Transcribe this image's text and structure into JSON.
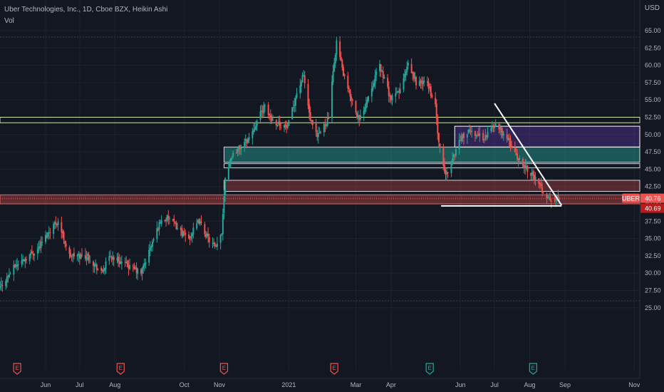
{
  "header": {
    "title": "Uber Technologies, Inc., 1D, Cboe BZX, Heikin Ashi",
    "indicator": "Vol",
    "currency": "USD"
  },
  "colors": {
    "background": "#131722",
    "up": "#26a69a",
    "down": "#ef5350",
    "grid": "#1e222d",
    "axis_text": "#b2b5be",
    "price_label": "#ef5350"
  },
  "chart_data": {
    "type": "candlestick",
    "style": "Heikin Ashi",
    "ylim": [
      23.5,
      66
    ],
    "grid": true,
    "y_ticks": [
      "65.00",
      "62.50",
      "60.00",
      "57.50",
      "55.00",
      "52.50",
      "50.00",
      "47.50",
      "45.00",
      "42.50",
      "40.00",
      "37.50",
      "35.00",
      "32.50",
      "30.00",
      "27.50",
      "25.00"
    ],
    "x_ticks": [
      {
        "label": "Jun",
        "date": "2020-06-01"
      },
      {
        "label": "Jul",
        "date": "2020-07-01"
      },
      {
        "label": "Aug",
        "date": "2020-08-01"
      },
      {
        "label": "Oct",
        "date": "2020-10-01"
      },
      {
        "label": "Nov",
        "date": "2020-11-01"
      },
      {
        "label": "2021",
        "date": "2021-01-01"
      },
      {
        "label": "Mar",
        "date": "2021-03-01"
      },
      {
        "label": "Apr",
        "date": "2021-04-01"
      },
      {
        "label": "Jun",
        "date": "2021-06-01"
      },
      {
        "label": "Jul",
        "date": "2021-07-01"
      },
      {
        "label": "Aug",
        "date": "2021-08-01"
      },
      {
        "label": "Sep",
        "date": "2021-09-01"
      },
      {
        "label": "Nov",
        "date": "2021-11-01"
      }
    ],
    "price_path": [
      [
        "2020-04-20",
        27.5
      ],
      [
        "2020-05-05",
        31.0
      ],
      [
        "2020-05-25",
        33.5
      ],
      [
        "2020-06-08",
        37.0
      ],
      [
        "2020-06-12",
        37.5
      ],
      [
        "2020-06-22",
        32.5
      ],
      [
        "2020-07-08",
        32.5
      ],
      [
        "2020-07-20",
        30.0
      ],
      [
        "2020-07-28",
        32.5
      ],
      [
        "2020-08-07",
        31.5
      ],
      [
        "2020-08-24",
        30.0
      ],
      [
        "2020-09-02",
        34.0
      ],
      [
        "2020-09-10",
        37.5
      ],
      [
        "2020-09-17",
        38.0
      ],
      [
        "2020-09-28",
        36.0
      ],
      [
        "2020-10-05",
        35.0
      ],
      [
        "2020-10-14",
        37.5
      ],
      [
        "2020-10-22",
        35.0
      ],
      [
        "2020-10-29",
        33.5
      ],
      [
        "2020-11-03",
        36.0
      ],
      [
        "2020-11-06",
        44.0
      ],
      [
        "2020-11-12",
        47.0
      ],
      [
        "2020-11-27",
        49.5
      ],
      [
        "2020-12-10",
        54.0
      ],
      [
        "2020-12-18",
        52.0
      ],
      [
        "2020-12-31",
        51.0
      ],
      [
        "2021-01-08",
        56.0
      ],
      [
        "2021-01-14",
        58.5
      ],
      [
        "2021-01-20",
        52.0
      ],
      [
        "2021-01-26",
        49.5
      ],
      [
        "2021-02-05",
        52.5
      ],
      [
        "2021-02-12",
        63.5
      ],
      [
        "2021-02-19",
        58.0
      ],
      [
        "2021-03-04",
        52.0
      ],
      [
        "2021-03-15",
        57.0
      ],
      [
        "2021-03-22",
        60.0
      ],
      [
        "2021-04-01",
        55.0
      ],
      [
        "2021-04-09",
        56.5
      ],
      [
        "2021-04-16",
        60.0
      ],
      [
        "2021-04-23",
        57.5
      ],
      [
        "2021-05-03",
        57.5
      ],
      [
        "2021-05-10",
        54.0
      ],
      [
        "2021-05-13",
        48.5
      ],
      [
        "2021-05-19",
        44.0
      ],
      [
        "2021-06-01",
        49.5
      ],
      [
        "2021-06-10",
        50.5
      ],
      [
        "2021-06-22",
        49.5
      ],
      [
        "2021-07-01",
        51.5
      ],
      [
        "2021-07-12",
        49.5
      ],
      [
        "2021-07-22",
        46.5
      ],
      [
        "2021-08-02",
        44.5
      ],
      [
        "2021-08-12",
        42.0
      ],
      [
        "2021-08-20",
        40.3
      ],
      [
        "2021-08-27",
        41.0
      ]
    ],
    "last_price": {
      "symbol": "UBER",
      "value": "40.76",
      "secondary": "40.69"
    },
    "zones": [
      {
        "from": 51.7,
        "to": 52.5,
        "fill": "none",
        "stroke": "#c8e6b5",
        "start": "left"
      },
      {
        "from": 46.0,
        "to": 48.2,
        "fill": "rgba(38,166,154,0.45)",
        "stroke": "#d1d4dc",
        "start": "2020-11-05"
      },
      {
        "from": 45.2,
        "to": 45.8,
        "fill": "none",
        "stroke": "#d1d4dc",
        "start": "2020-11-05"
      },
      {
        "from": 41.8,
        "to": 43.4,
        "fill": "rgba(239,83,80,0.30)",
        "stroke": "#d1d4dc",
        "start": "2020-11-05"
      },
      {
        "from": 40.0,
        "to": 41.3,
        "fill": "rgba(239,83,80,0.35)",
        "stroke": "#e06666",
        "start": "left"
      },
      {
        "from": 48.2,
        "to": 51.2,
        "fill": "rgba(103,58,183,0.35)",
        "stroke": "#ffffff",
        "start": "2021-05-27"
      }
    ],
    "trendlines": [
      {
        "from": [
          "2021-07-01",
          54.5
        ],
        "to": [
          "2021-08-29",
          39.8
        ]
      },
      {
        "from": [
          "2021-05-15",
          39.7
        ],
        "to": [
          "2021-08-29",
          39.7
        ]
      }
    ],
    "events": [
      {
        "date": "2020-05-07",
        "label": "E",
        "color": "#ef5350"
      },
      {
        "date": "2020-08-06",
        "label": "E",
        "color": "#ef5350"
      },
      {
        "date": "2020-11-05",
        "label": "E",
        "color": "#ef5350"
      },
      {
        "date": "2021-02-10",
        "label": "E",
        "color": "#ef5350"
      },
      {
        "date": "2021-05-05",
        "label": "E",
        "color": "#26a69a"
      },
      {
        "date": "2021-08-04",
        "label": "E",
        "color": "#26a69a"
      }
    ]
  }
}
